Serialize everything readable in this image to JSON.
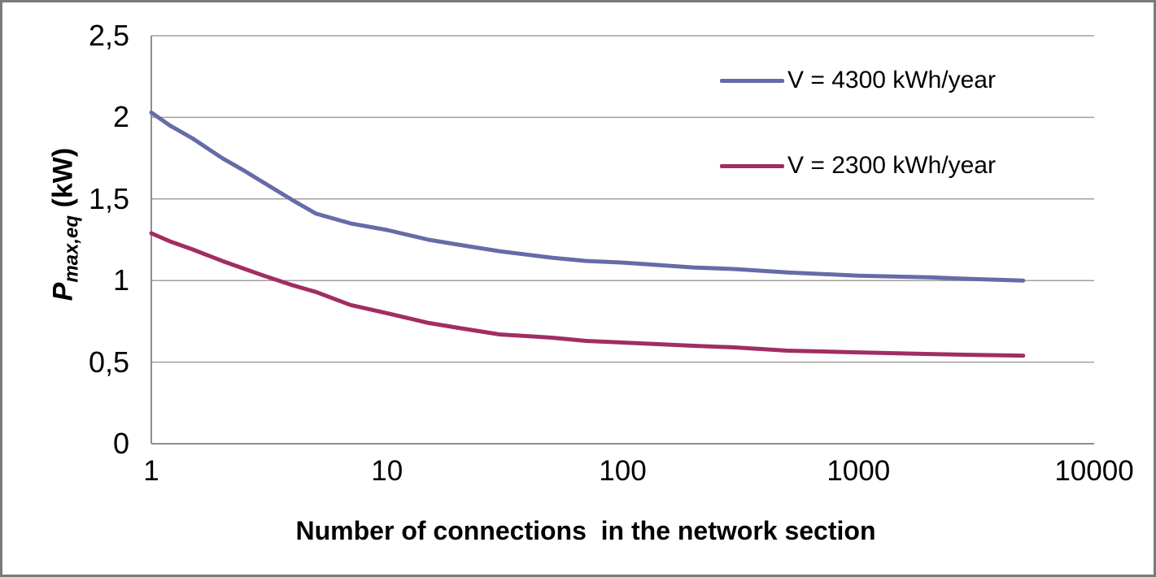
{
  "chart_data": {
    "type": "line",
    "title": "",
    "xlabel": "Number of connections  in the network section",
    "ylabel": "P_max,eq (kW)",
    "ylabel_parts": {
      "symbol": "P",
      "subscript": "max,eq",
      "unit": " (kW)"
    },
    "x_scale": "log",
    "xlim": [
      1,
      10000
    ],
    "ylim": [
      0,
      2.5
    ],
    "x_tick_values": [
      1,
      10,
      100,
      1000,
      10000
    ],
    "x_tick_labels": [
      "1",
      "10",
      "100",
      "1000",
      "10000"
    ],
    "y_tick_values": [
      2.5,
      2,
      1.5,
      1,
      0.5,
      0
    ],
    "y_tick_labels": [
      "2,5",
      "2",
      "1,5",
      "1",
      "0,5",
      "0"
    ],
    "decimal_separator": ",",
    "grid": "horizontal",
    "legend_position": "inside-top-right",
    "series": [
      {
        "name": "V = 4300 kWh/year",
        "color": "#666BA8",
        "points": [
          [
            1,
            2.03
          ],
          [
            1.2,
            1.95
          ],
          [
            1.5,
            1.87
          ],
          [
            2,
            1.75
          ],
          [
            2.5,
            1.67
          ],
          [
            3,
            1.6
          ],
          [
            4,
            1.49
          ],
          [
            5,
            1.41
          ],
          [
            7,
            1.35
          ],
          [
            10,
            1.31
          ],
          [
            15,
            1.25
          ],
          [
            20,
            1.22
          ],
          [
            30,
            1.18
          ],
          [
            50,
            1.14
          ],
          [
            70,
            1.12
          ],
          [
            100,
            1.11
          ],
          [
            200,
            1.08
          ],
          [
            300,
            1.07
          ],
          [
            500,
            1.05
          ],
          [
            1000,
            1.03
          ],
          [
            2000,
            1.02
          ],
          [
            3000,
            1.01
          ],
          [
            5000,
            1.0
          ]
        ]
      },
      {
        "name": "V = 2300 kWh/year",
        "color": "#A12D62",
        "points": [
          [
            1,
            1.29
          ],
          [
            1.2,
            1.24
          ],
          [
            1.5,
            1.19
          ],
          [
            2,
            1.12
          ],
          [
            2.5,
            1.07
          ],
          [
            3,
            1.03
          ],
          [
            4,
            0.97
          ],
          [
            5,
            0.93
          ],
          [
            7,
            0.85
          ],
          [
            10,
            0.8
          ],
          [
            15,
            0.74
          ],
          [
            20,
            0.71
          ],
          [
            30,
            0.67
          ],
          [
            50,
            0.65
          ],
          [
            70,
            0.63
          ],
          [
            100,
            0.62
          ],
          [
            200,
            0.6
          ],
          [
            300,
            0.59
          ],
          [
            500,
            0.57
          ],
          [
            1000,
            0.56
          ],
          [
            2000,
            0.55
          ],
          [
            3000,
            0.545
          ],
          [
            5000,
            0.54
          ]
        ]
      }
    ]
  },
  "colors": {
    "gridline": "#a0a0a0",
    "axis": "#8e8e8e",
    "frame_border": "#7b7b7b",
    "text": "#000000",
    "background": "#ffffff"
  }
}
